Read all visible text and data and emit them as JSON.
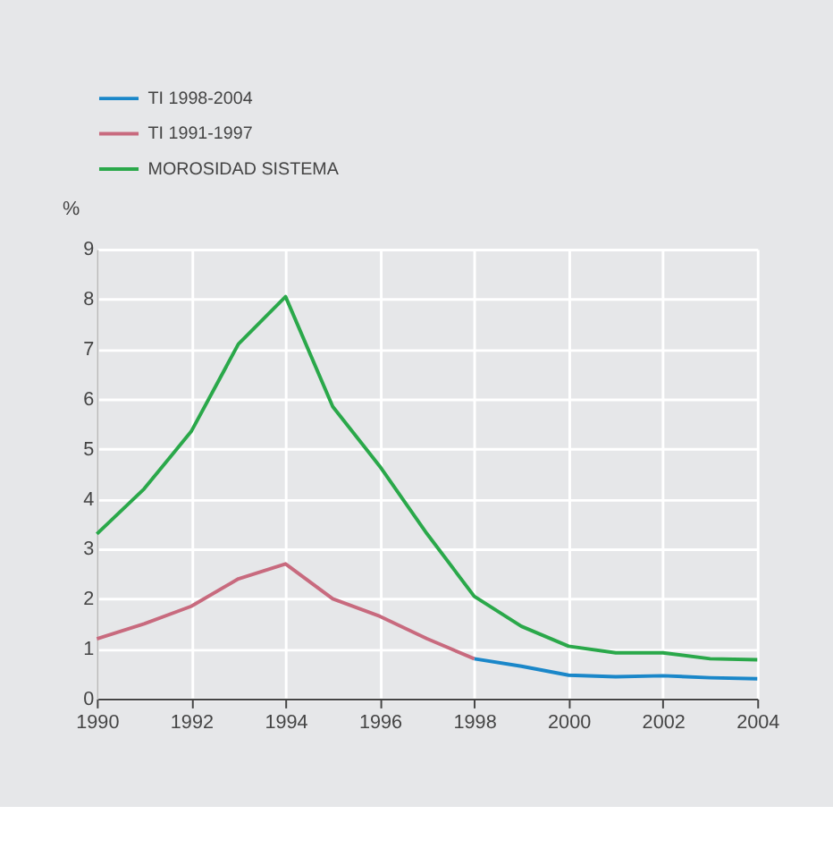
{
  "chart_data": {
    "type": "line",
    "ylabel": "%",
    "series": [
      {
        "name": "TI 1998-2004",
        "color": "#1a87c9",
        "x": [
          1998,
          1999,
          2000,
          2001,
          2002,
          2003,
          2004
        ],
        "values": [
          0.8,
          0.65,
          0.47,
          0.44,
          0.46,
          0.42,
          0.4
        ]
      },
      {
        "name": "TI 1991-1997",
        "color": "#c86a7e",
        "x": [
          1990,
          1991,
          1992,
          1993,
          1994,
          1995,
          1996,
          1997,
          1998
        ],
        "values": [
          1.2,
          1.5,
          1.85,
          2.4,
          2.7,
          2.0,
          1.65,
          1.2,
          0.8
        ]
      },
      {
        "name": "MOROSIDAD SISTEMA",
        "color": "#2aa84a",
        "x": [
          1990,
          1991,
          1992,
          1993,
          1994,
          1995,
          1996,
          1997,
          1998,
          1999,
          2000,
          2001,
          2002,
          2003,
          2004
        ],
        "values": [
          3.3,
          4.2,
          5.35,
          7.1,
          8.05,
          5.85,
          4.65,
          3.3,
          2.05,
          1.45,
          1.05,
          0.92,
          0.92,
          0.8,
          0.78
        ]
      }
    ],
    "xlim": [
      1990,
      2004
    ],
    "xticks": [
      1990,
      1992,
      1994,
      1996,
      1998,
      2000,
      2002,
      2004
    ],
    "ylim": [
      0,
      9
    ],
    "yticks": [
      0,
      1,
      2,
      3,
      4,
      5,
      6,
      7,
      8,
      9
    ],
    "grid": true,
    "legend": "top left",
    "marker": "none",
    "line_style": "solid"
  }
}
